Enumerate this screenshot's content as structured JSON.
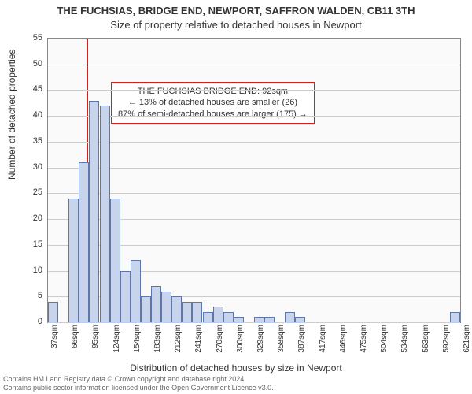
{
  "title_line1": "THE FUCHSIAS, BRIDGE END, NEWPORT, SAFFRON WALDEN, CB11 3TH",
  "title_line2": "Size of property relative to detached houses in Newport",
  "y_axis_title": "Number of detached properties",
  "x_axis_title": "Distribution of detached houses by size in Newport",
  "footer_line1": "Contains HM Land Registry data © Crown copyright and database right 2024.",
  "footer_line2": "Contains public sector information licensed under the Open Government Licence v3.0.",
  "infobox": {
    "line1": "THE FUCHSIAS BRIDGE END: 92sqm",
    "line2": "← 13% of detached houses are smaller (26)",
    "line3": "87% of semi-detached houses are larger (175) →"
  },
  "chart": {
    "type": "histogram",
    "y_min": 0,
    "y_max": 55,
    "y_ticks": [
      0,
      5,
      10,
      15,
      20,
      25,
      30,
      35,
      40,
      45,
      50,
      55
    ],
    "x_labels": [
      "37sqm",
      "66sqm",
      "95sqm",
      "124sqm",
      "154sqm",
      "183sqm",
      "212sqm",
      "241sqm",
      "270sqm",
      "300sqm",
      "329sqm",
      "358sqm",
      "387sqm",
      "417sqm",
      "446sqm",
      "475sqm",
      "504sqm",
      "534sqm",
      "563sqm",
      "592sqm",
      "621sqm"
    ],
    "x_label_every": 1,
    "bar_color": "#c8d4eb",
    "bar_border": "#5e76a8",
    "grid_color": "#cccccc",
    "plot_bg": "#fafafa",
    "marker_color": "#d02020",
    "marker_x_value": 92,
    "x_start": 37,
    "x_step": 14.65,
    "values": [
      4,
      0,
      24,
      31,
      43,
      42,
      24,
      10,
      12,
      5,
      7,
      6,
      5,
      4,
      4,
      2,
      3,
      2,
      1,
      0,
      1,
      1,
      0,
      2,
      1,
      0,
      0,
      0,
      0,
      0,
      0,
      0,
      0,
      0,
      0,
      0,
      0,
      0,
      0,
      2
    ],
    "title_fontsize": 13,
    "axis_fontsize": 12,
    "tick_fontsize": 11,
    "xlabel_fontsize": 10
  }
}
